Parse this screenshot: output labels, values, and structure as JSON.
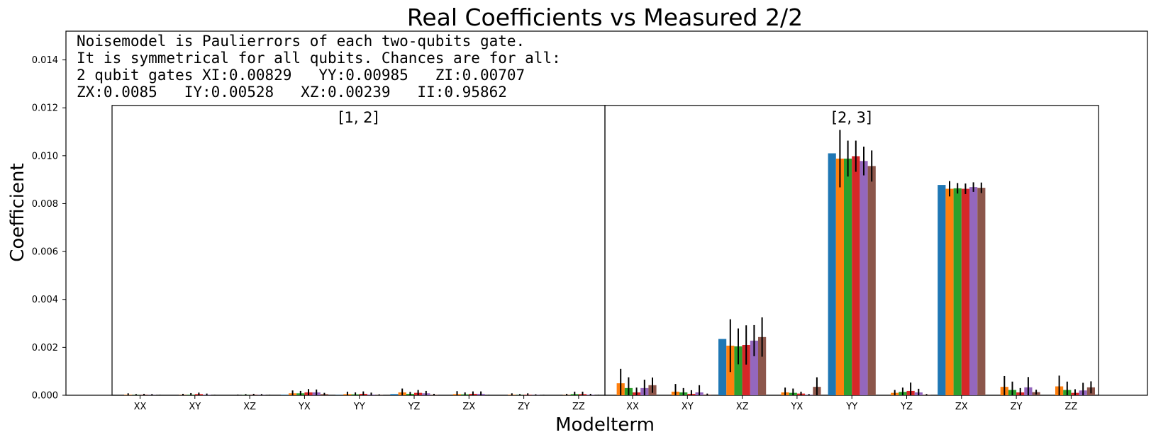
{
  "chart_data": {
    "type": "bar",
    "title": "Real Coefficients vs Measured 2/2",
    "xlabel": "Modelterm",
    "ylabel": "Coefficient",
    "ylim": [
      0,
      0.0152
    ],
    "yticks": [
      "0.000",
      "0.002",
      "0.004",
      "0.006",
      "0.008",
      "0.010",
      "0.012",
      "0.014"
    ],
    "ytick_values": [
      0,
      0.002,
      0.004,
      0.006,
      0.008,
      0.01,
      0.012,
      0.014
    ],
    "grid": false,
    "annotation": [
      "Noisemodel is Paulierrors of each two-qubits gate.",
      "It is symmetrical for all qubits. Chances are for all:",
      "2 qubit gates XI:0.00829   YY:0.00985   ZI:0.00707",
      "ZX:0.0085   IY:0.00528   XZ:0.00239   II:0.95862"
    ],
    "colors": [
      "#1f77b4",
      "#ff7f0e",
      "#2ca02c",
      "#d62728",
      "#9467bd",
      "#8c564b"
    ],
    "error_color": "#000000",
    "groups": [
      {
        "label": "[1, 2]",
        "categories": [
          "XX",
          "XY",
          "XZ",
          "YX",
          "YY",
          "YZ",
          "ZX",
          "ZY",
          "ZZ"
        ],
        "values": [
          [
            0,
            2e-05,
            1e-05,
            1e-05,
            1e-05,
            0
          ],
          [
            0,
            1e-05,
            2e-05,
            5e-05,
            2e-05,
            0
          ],
          [
            0,
            0,
            1e-05,
            1e-05,
            1e-05,
            0
          ],
          [
            2e-05,
            8e-05,
            8e-05,
            0.00012,
            0.00012,
            5e-05
          ],
          [
            1e-05,
            5e-05,
            4e-05,
            6e-05,
            3e-05,
            1e-05
          ],
          [
            5e-05,
            0.00012,
            6e-05,
            0.0001,
            8e-05,
            2e-05
          ],
          [
            0,
            5e-05,
            4e-05,
            6e-05,
            6e-05,
            0
          ],
          [
            0,
            2e-05,
            1e-05,
            2e-05,
            1e-05,
            0
          ],
          [
            0,
            1e-05,
            5e-05,
            5e-05,
            2e-05,
            0
          ]
        ],
        "errors": [
          [
            0,
            6e-05,
            4e-05,
            5e-05,
            4e-05,
            2e-05
          ],
          [
            0,
            5e-05,
            7e-05,
            6e-05,
            5e-05,
            2e-05
          ],
          [
            0,
            3e-05,
            4e-05,
            5e-05,
            4e-05,
            2e-05
          ],
          [
            0,
            0.00012,
            0.0001,
            0.00014,
            0.00012,
            5e-05
          ],
          [
            0,
            0.0001,
            8e-05,
            0.0001,
            8e-05,
            3e-05
          ],
          [
            0,
            0.00016,
            8e-05,
            0.00012,
            0.0001,
            4e-05
          ],
          [
            0,
            0.00012,
            8e-05,
            0.0001,
            0.0001,
            2e-05
          ],
          [
            0,
            6e-05,
            4e-05,
            6e-05,
            3e-05,
            2e-05
          ],
          [
            0,
            5e-05,
            0.0001,
            0.0001,
            4e-05,
            2e-05
          ]
        ]
      },
      {
        "label": "[2, 3]",
        "categories": [
          "XX",
          "XY",
          "XZ",
          "YX",
          "YY",
          "YZ",
          "ZX",
          "ZY",
          "ZZ"
        ],
        "values": [
          [
            0,
            0.0005,
            0.0003,
            0.00012,
            0.0003,
            0.00042
          ],
          [
            0,
            0.00015,
            0.00012,
            6e-05,
            0.00012,
            3e-05
          ],
          [
            0.00235,
            0.00207,
            0.00204,
            0.0021,
            0.00228,
            0.00243
          ],
          [
            0,
            0.00012,
            0.0001,
            7e-05,
            2e-05,
            0.00035
          ],
          [
            0.0101,
            0.00988,
            0.00988,
            0.00998,
            0.00978,
            0.00957
          ],
          [
            0,
            0.0001,
            0.00014,
            0.00018,
            0.00012,
            2e-05
          ],
          [
            0.00878,
            0.00862,
            0.00864,
            0.00862,
            0.00869,
            0.00866
          ],
          [
            0,
            0.00035,
            0.00022,
            0.00012,
            0.00033,
            0.00013
          ],
          [
            0,
            0.00037,
            0.00022,
            0.0001,
            0.0002,
            0.00033
          ]
        ],
        "errors": [
          [
            0,
            0.0006,
            0.00045,
            0.0002,
            0.00035,
            0.00032
          ],
          [
            0,
            0.00032,
            0.00018,
            0.00015,
            0.0003,
            4e-05
          ],
          [
            0,
            0.0011,
            0.00075,
            0.00082,
            0.00065,
            0.00082
          ],
          [
            0,
            0.0002,
            0.00018,
            8e-05,
            3e-05,
            0.0004
          ],
          [
            0,
            0.0012,
            0.00075,
            0.00065,
            0.0006,
            0.00065
          ],
          [
            0,
            0.00012,
            0.00018,
            0.00035,
            0.00015,
            3e-05
          ],
          [
            0,
            0.00032,
            0.00022,
            0.00022,
            0.0002,
            0.00022
          ],
          [
            0,
            0.00045,
            0.00035,
            0.00018,
            0.00043,
            0.0001
          ],
          [
            0,
            0.00045,
            0.00035,
            0.00015,
            0.00032,
            0.00025
          ]
        ]
      }
    ]
  }
}
